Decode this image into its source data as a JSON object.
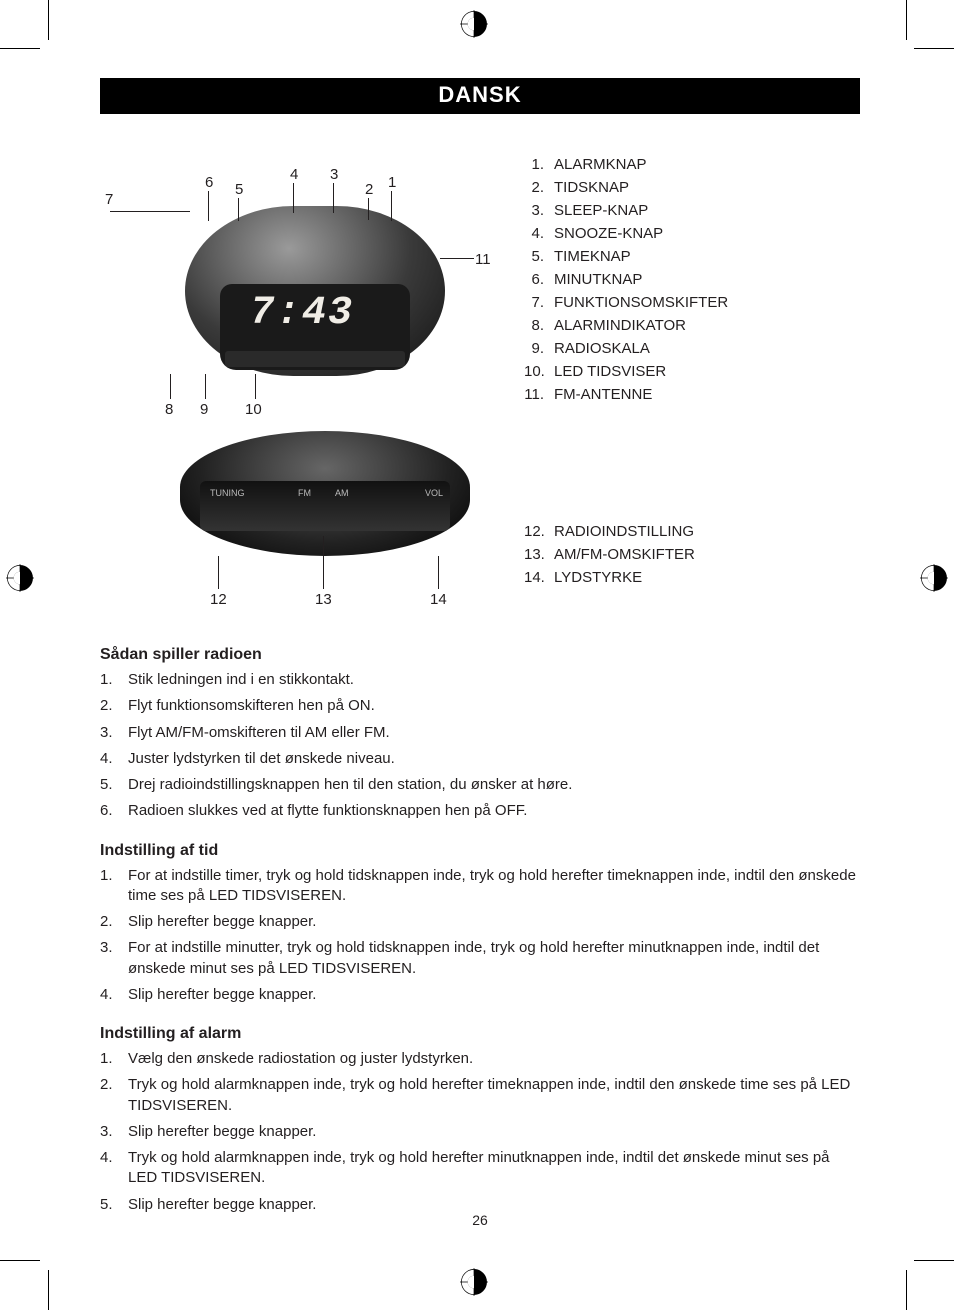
{
  "title": "DANSK",
  "clock_time": "7:43",
  "diagram1_callouts": [
    "1",
    "2",
    "3",
    "4",
    "5",
    "6",
    "7",
    "8",
    "9",
    "10",
    "11"
  ],
  "diagram2_callouts": [
    "12",
    "13",
    "14"
  ],
  "back_labels": {
    "tuning": "TUNING",
    "fm": "FM",
    "am": "AM",
    "vol": "VOL"
  },
  "parts": [
    {
      "n": "1.",
      "t": "ALARMKNAP"
    },
    {
      "n": "2.",
      "t": "TIDSKNAP"
    },
    {
      "n": "3.",
      "t": "SLEEP-KNAP"
    },
    {
      "n": "4.",
      "t": "SNOOZE-KNAP"
    },
    {
      "n": "5.",
      "t": "TIMEKNAP"
    },
    {
      "n": "6.",
      "t": "MINUTKNAP"
    },
    {
      "n": "7.",
      "t": "FUNKTIONSOMSKIFTER"
    },
    {
      "n": "8.",
      "t": "ALARMINDIKATOR"
    },
    {
      "n": "9.",
      "t": "RADIOSKALA"
    },
    {
      "n": "10.",
      "t": "LED TIDSVISER"
    },
    {
      "n": "11.",
      "t": "FM-ANTENNE"
    }
  ],
  "parts2": [
    {
      "n": "12.",
      "t": "RADIOINDSTILLING"
    },
    {
      "n": "13.",
      "t": "AM/FM-OMSKIFTER"
    },
    {
      "n": "14.",
      "t": "LYDSTYRKE"
    }
  ],
  "sections": [
    {
      "heading": "Sådan spiller radioen",
      "items": [
        {
          "n": "1.",
          "t": "Stik ledningen ind i en stikkontakt."
        },
        {
          "n": "2.",
          "t": "Flyt funktionsomskifteren hen på ON."
        },
        {
          "n": "3.",
          "t": "Flyt AM/FM-omskifteren til AM eller FM."
        },
        {
          "n": "4.",
          "t": "Juster lydstyrken til det ønskede niveau."
        },
        {
          "n": "5.",
          "t": "Drej radioindstillingsknappen hen til den station, du ønsker at høre."
        },
        {
          "n": "6.",
          "t": "Radioen slukkes ved at flytte funktionsknappen hen på OFF."
        }
      ]
    },
    {
      "heading": "Indstilling af tid",
      "items": [
        {
          "n": "1.",
          "t": "For at indstille timer, tryk og hold tidsknappen inde, tryk og hold herefter timeknappen inde, indtil den ønskede time ses på LED TIDSVISEREN."
        },
        {
          "n": "2.",
          "t": "Slip herefter begge knapper."
        },
        {
          "n": "3.",
          "t": "For at indstille minutter, tryk og hold tidsknappen inde, tryk og hold herefter minutknappen inde, indtil det ønskede minut ses på LED TIDSVISEREN."
        },
        {
          "n": "4.",
          "t": "Slip herefter begge knapper."
        }
      ]
    },
    {
      "heading": "Indstilling af alarm",
      "items": [
        {
          "n": "1.",
          "t": "Vælg den ønskede radiostation og juster lydstyrken."
        },
        {
          "n": "2.",
          "t": "Tryk og hold alarmknappen inde, tryk og hold herefter timeknappen inde, indtil den ønskede time ses på LED TIDSVISEREN."
        },
        {
          "n": "3.",
          "t": "Slip herefter begge knapper."
        },
        {
          "n": "4.",
          "t": "Tryk og hold alarmknappen inde, tryk og hold herefter minutknappen inde, indtil det ønskede minut ses på LED TIDSVISEREN."
        },
        {
          "n": "5.",
          "t": "Slip herefter begge knapper."
        }
      ]
    }
  ],
  "page_number": "26",
  "colors": {
    "text": "#231f20",
    "bg": "#ffffff",
    "bar": "#000000",
    "bar_text": "#ffffff"
  }
}
